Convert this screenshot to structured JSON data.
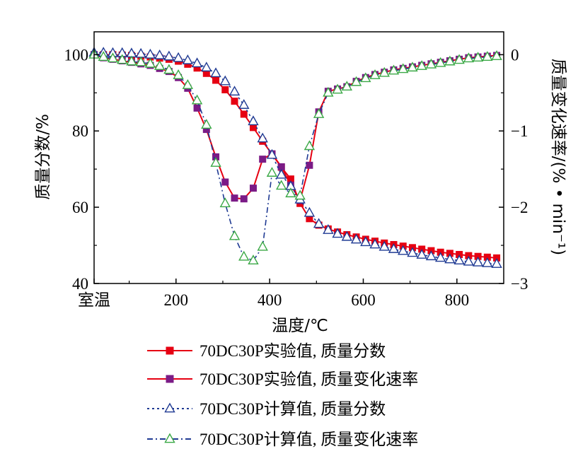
{
  "chart_data": {
    "type": "line",
    "xlabel": "温度/℃",
    "ylabel_left": "质量分数/%",
    "ylabel_right": "质量变化速率/(% • min⁻¹)",
    "x_ticks": [
      {
        "value": 25,
        "label": "室温"
      },
      {
        "value": 200,
        "label": "200"
      },
      {
        "value": 400,
        "label": "400"
      },
      {
        "value": 600,
        "label": "600"
      },
      {
        "value": 800,
        "label": "800"
      }
    ],
    "y_left_ticks": [
      {
        "value": 40,
        "label": "40"
      },
      {
        "value": 60,
        "label": "60"
      },
      {
        "value": 80,
        "label": "80"
      },
      {
        "value": 100,
        "label": "100"
      }
    ],
    "y_right_ticks": [
      {
        "value": -3,
        "label": "−3"
      },
      {
        "value": -2,
        "label": "−2"
      },
      {
        "value": -1,
        "label": "−1"
      },
      {
        "value": 0,
        "label": "0"
      }
    ],
    "xlim": [
      25,
      900
    ],
    "ylim_left": [
      40,
      106
    ],
    "ylim_right": [
      -3,
      0.3
    ],
    "legend_position": "bottom",
    "series": [
      {
        "name": "70DC30P实验值, 质量分数",
        "axis": "left",
        "color": "#e60012",
        "marker": "square-filled",
        "dash": "solid",
        "x": [
          25,
          45,
          65,
          85,
          105,
          125,
          145,
          165,
          185,
          205,
          225,
          245,
          265,
          285,
          305,
          325,
          345,
          365,
          385,
          405,
          425,
          445,
          465,
          485,
          505,
          525,
          545,
          565,
          585,
          605,
          625,
          645,
          665,
          685,
          705,
          725,
          745,
          765,
          785,
          805,
          825,
          845,
          865,
          885
        ],
        "y": [
          100,
          100,
          100,
          99.9,
          99.8,
          99.6,
          99.4,
          99.1,
          98.8,
          98.3,
          97.5,
          96.5,
          95.1,
          93.3,
          90.8,
          87.8,
          84.4,
          80.9,
          77.3,
          73.9,
          70.5,
          67.4,
          61,
          57,
          55.3,
          54.3,
          53.5,
          52.8,
          52.2,
          51.6,
          51.1,
          50.6,
          50.2,
          49.8,
          49.4,
          49,
          48.6,
          48.2,
          47.9,
          47.6,
          47.3,
          47.1,
          46.9,
          46.7
        ]
      },
      {
        "name": "70DC30P实验值, 质量变化速率",
        "axis": "right",
        "color": "#e60012",
        "marker_color": "#7b1b86",
        "marker": "square-filled",
        "dash": "solid",
        "x": [
          25,
          45,
          65,
          85,
          105,
          125,
          145,
          165,
          185,
          205,
          225,
          245,
          265,
          285,
          305,
          325,
          345,
          365,
          385,
          405,
          425,
          445,
          465,
          485,
          505,
          525,
          545,
          565,
          585,
          605,
          625,
          645,
          665,
          685,
          705,
          725,
          745,
          765,
          785,
          805,
          825,
          845,
          865,
          885
        ],
        "y": [
          0,
          -0.04,
          -0.06,
          -0.08,
          -0.1,
          -0.12,
          -0.14,
          -0.18,
          -0.22,
          -0.3,
          -0.44,
          -0.7,
          -0.98,
          -1.34,
          -1.67,
          -1.88,
          -1.89,
          -1.75,
          -1.37,
          -1.3,
          -1.47,
          -1.71,
          -1.91,
          -1.45,
          -0.75,
          -0.48,
          -0.45,
          -0.42,
          -0.35,
          -0.3,
          -0.26,
          -0.23,
          -0.2,
          -0.18,
          -0.16,
          -0.14,
          -0.12,
          -0.1,
          -0.08,
          -0.06,
          -0.04,
          -0.03,
          -0.02,
          -0.01
        ]
      },
      {
        "name": "70DC30P计算值, 质量分数",
        "axis": "left",
        "color": "#1f3a93",
        "marker": "triangle-open",
        "dash": "3,4",
        "x": [
          25,
          45,
          65,
          85,
          105,
          125,
          145,
          165,
          185,
          205,
          225,
          245,
          265,
          285,
          305,
          325,
          345,
          365,
          385,
          405,
          425,
          445,
          465,
          485,
          505,
          525,
          545,
          565,
          585,
          605,
          625,
          645,
          665,
          685,
          705,
          725,
          745,
          765,
          785,
          805,
          825,
          845,
          865,
          885
        ],
        "y": [
          100.5,
          100.5,
          100.4,
          100.4,
          100.3,
          100.2,
          100,
          99.8,
          99.5,
          99.1,
          98.5,
          97.7,
          96.6,
          95.1,
          93,
          90.3,
          86.8,
          82.5,
          78,
          73.7,
          68.5,
          65.5,
          62,
          58.5,
          55.6,
          54,
          53,
          52.2,
          51.5,
          50.8,
          50.2,
          49.6,
          49,
          48.5,
          48,
          47.5,
          47.1,
          46.7,
          46.3,
          46,
          45.7,
          45.5,
          45.3,
          45.1
        ]
      },
      {
        "name": "70DC30P计算值, 质量变化速率",
        "axis": "right",
        "color": "#1f3a93",
        "marker_color": "#3aa845",
        "marker": "triangle-open",
        "dash": "8,4,2,4",
        "x": [
          25,
          45,
          65,
          85,
          105,
          125,
          145,
          165,
          185,
          205,
          225,
          245,
          265,
          285,
          305,
          325,
          345,
          365,
          385,
          405,
          425,
          445,
          465,
          485,
          505,
          525,
          545,
          565,
          585,
          605,
          625,
          645,
          665,
          685,
          705,
          725,
          745,
          765,
          785,
          805,
          825,
          845,
          865,
          885
        ],
        "y": [
          0,
          -0.03,
          -0.05,
          -0.07,
          -0.09,
          -0.1,
          -0.12,
          -0.15,
          -0.2,
          -0.27,
          -0.4,
          -0.6,
          -0.92,
          -1.42,
          -1.95,
          -2.38,
          -2.65,
          -2.7,
          -2.52,
          -1.55,
          -1.72,
          -1.82,
          -1.85,
          -1.2,
          -0.78,
          -0.5,
          -0.46,
          -0.42,
          -0.36,
          -0.31,
          -0.27,
          -0.24,
          -0.21,
          -0.19,
          -0.17,
          -0.15,
          -0.13,
          -0.11,
          -0.09,
          -0.07,
          -0.05,
          -0.04,
          -0.03,
          -0.02
        ]
      }
    ]
  }
}
